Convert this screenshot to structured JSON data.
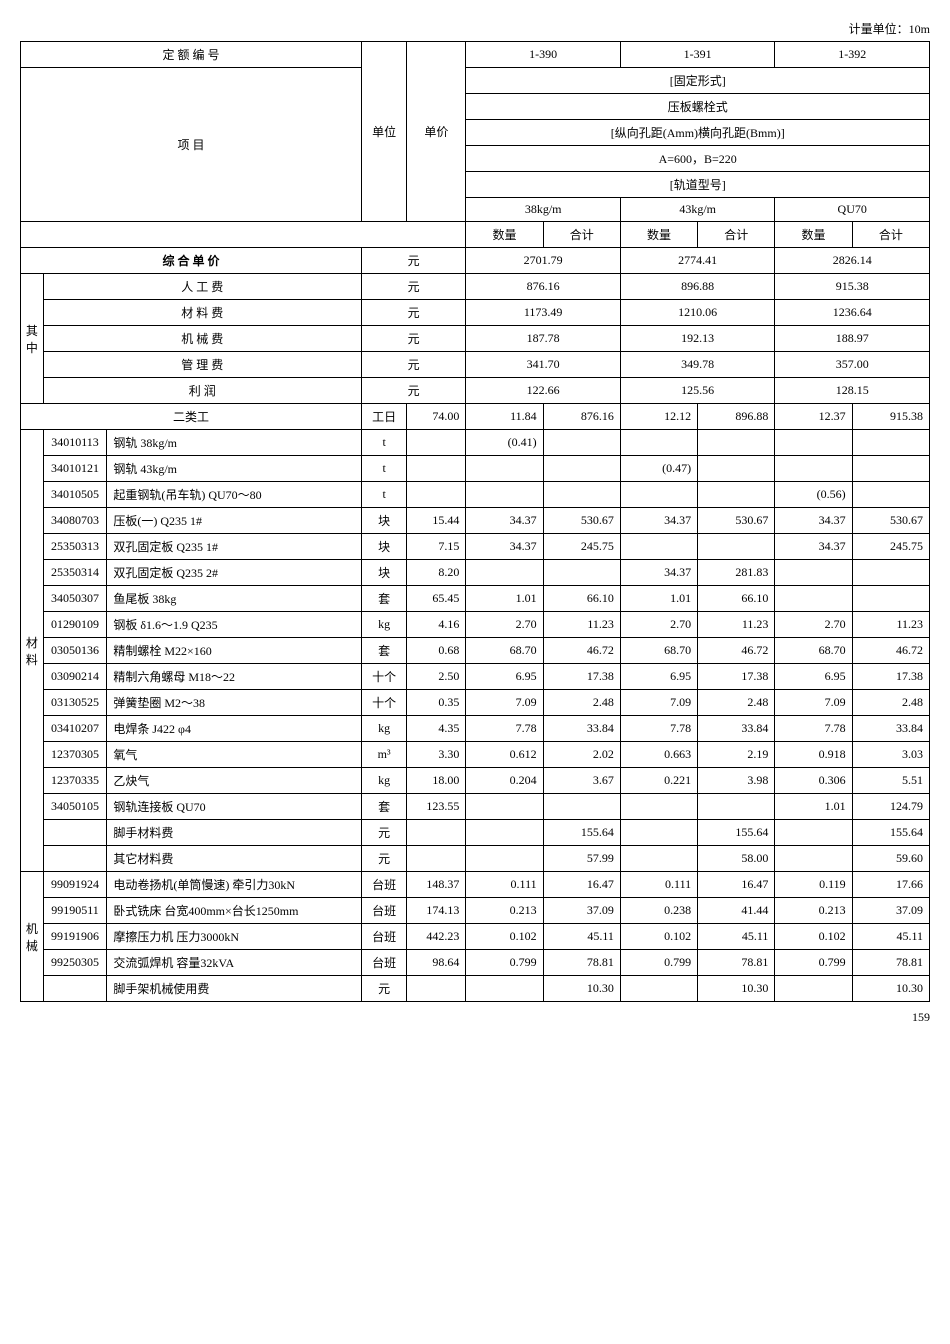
{
  "unit_label": "计量单位：10m",
  "page_number": "159",
  "header": {
    "quota_number": "定 额 编 号",
    "item": "项    目",
    "unit": "单位",
    "price": "单价",
    "fixed_form": "[固定形式]",
    "bolt_type": "压板螺栓式",
    "hole_spacing": "[纵向孔距(Amm)横向孔距(Bmm)]",
    "ab_spec": "A=600，B=220",
    "rail_model": "[轨道型号]",
    "cols": [
      "1-390",
      "1-391",
      "1-392"
    ],
    "spec_cols": [
      "38kg/m",
      "43kg/m",
      "QU70"
    ],
    "qty": "数量",
    "sum": "合计"
  },
  "composite": {
    "label": "综 合 单 价",
    "unit": "元",
    "vals": [
      "2701.79",
      "2774.41",
      "2826.14"
    ]
  },
  "cost_group": {
    "side": "其中",
    "rows": [
      {
        "label": "人 工 费",
        "unit": "元",
        "vals": [
          "876.16",
          "896.88",
          "915.38"
        ]
      },
      {
        "label": "材 料 费",
        "unit": "元",
        "vals": [
          "1173.49",
          "1210.06",
          "1236.64"
        ]
      },
      {
        "label": "机 械 费",
        "unit": "元",
        "vals": [
          "187.78",
          "192.13",
          "188.97"
        ]
      },
      {
        "label": "管 理 费",
        "unit": "元",
        "vals": [
          "341.70",
          "349.78",
          "357.00"
        ]
      },
      {
        "label": "利    润",
        "unit": "元",
        "vals": [
          "122.66",
          "125.56",
          "128.15"
        ]
      }
    ]
  },
  "labor": {
    "label": "二类工",
    "unit": "工日",
    "price": "74.00",
    "cells": [
      "11.84",
      "876.16",
      "12.12",
      "896.88",
      "12.37",
      "915.38"
    ]
  },
  "material": {
    "side": "材料",
    "rows": [
      {
        "code": "34010113",
        "name": "钢轨 38kg/m",
        "unit": "t",
        "price": "",
        "cells": [
          "(0.41)",
          "",
          "",
          "",
          "",
          ""
        ]
      },
      {
        "code": "34010121",
        "name": "钢轨 43kg/m",
        "unit": "t",
        "price": "",
        "cells": [
          "",
          "",
          "(0.47)",
          "",
          "",
          ""
        ]
      },
      {
        "code": "34010505",
        "name": "起重钢轨(吊车轨) QU70～80",
        "unit": "t",
        "price": "",
        "cells": [
          "",
          "",
          "",
          "",
          "(0.56)",
          ""
        ]
      },
      {
        "code": "34080703",
        "name": "压板(一) Q235 1#",
        "unit": "块",
        "price": "15.44",
        "cells": [
          "34.37",
          "530.67",
          "34.37",
          "530.67",
          "34.37",
          "530.67"
        ]
      },
      {
        "code": "25350313",
        "name": "双孔固定板 Q235 1#",
        "unit": "块",
        "price": "7.15",
        "cells": [
          "34.37",
          "245.75",
          "",
          "",
          "34.37",
          "245.75"
        ]
      },
      {
        "code": "25350314",
        "name": "双孔固定板 Q235 2#",
        "unit": "块",
        "price": "8.20",
        "cells": [
          "",
          "",
          "34.37",
          "281.83",
          "",
          ""
        ]
      },
      {
        "code": "34050307",
        "name": "鱼尾板 38kg",
        "unit": "套",
        "price": "65.45",
        "cells": [
          "1.01",
          "66.10",
          "1.01",
          "66.10",
          "",
          ""
        ]
      },
      {
        "code": "01290109",
        "name": "钢板 δ1.6～1.9 Q235",
        "unit": "kg",
        "price": "4.16",
        "cells": [
          "2.70",
          "11.23",
          "2.70",
          "11.23",
          "2.70",
          "11.23"
        ]
      },
      {
        "code": "03050136",
        "name": "精制螺栓 M22×160",
        "unit": "套",
        "price": "0.68",
        "cells": [
          "68.70",
          "46.72",
          "68.70",
          "46.72",
          "68.70",
          "46.72"
        ]
      },
      {
        "code": "03090214",
        "name": "精制六角螺母 M18～22",
        "unit": "十个",
        "price": "2.50",
        "cells": [
          "6.95",
          "17.38",
          "6.95",
          "17.38",
          "6.95",
          "17.38"
        ]
      },
      {
        "code": "03130525",
        "name": "弹簧垫圈 M2～38",
        "unit": "十个",
        "price": "0.35",
        "cells": [
          "7.09",
          "2.48",
          "7.09",
          "2.48",
          "7.09",
          "2.48"
        ]
      },
      {
        "code": "03410207",
        "name": "电焊条 J422 φ4",
        "unit": "kg",
        "price": "4.35",
        "cells": [
          "7.78",
          "33.84",
          "7.78",
          "33.84",
          "7.78",
          "33.84"
        ]
      },
      {
        "code": "12370305",
        "name": "氧气",
        "unit": "m³",
        "price": "3.30",
        "cells": [
          "0.612",
          "2.02",
          "0.663",
          "2.19",
          "0.918",
          "3.03"
        ]
      },
      {
        "code": "12370335",
        "name": "乙炔气",
        "unit": "kg",
        "price": "18.00",
        "cells": [
          "0.204",
          "3.67",
          "0.221",
          "3.98",
          "0.306",
          "5.51"
        ]
      },
      {
        "code": "34050105",
        "name": "钢轨连接板 QU70",
        "unit": "套",
        "price": "123.55",
        "cells": [
          "",
          "",
          "",
          "",
          "1.01",
          "124.79"
        ]
      },
      {
        "code": "",
        "name": "脚手材料费",
        "unit": "元",
        "price": "",
        "cells": [
          "",
          "155.64",
          "",
          "155.64",
          "",
          "155.64"
        ]
      },
      {
        "code": "",
        "name": "其它材料费",
        "unit": "元",
        "price": "",
        "cells": [
          "",
          "57.99",
          "",
          "58.00",
          "",
          "59.60"
        ]
      }
    ]
  },
  "machine": {
    "side": "机械",
    "rows": [
      {
        "code": "99091924",
        "name": "电动卷扬机(单筒慢速) 牵引力30kN",
        "unit": "台班",
        "price": "148.37",
        "cells": [
          "0.111",
          "16.47",
          "0.111",
          "16.47",
          "0.119",
          "17.66"
        ]
      },
      {
        "code": "99190511",
        "name": "卧式铣床 台宽400mm×台长1250mm",
        "unit": "台班",
        "price": "174.13",
        "cells": [
          "0.213",
          "37.09",
          "0.238",
          "41.44",
          "0.213",
          "37.09"
        ]
      },
      {
        "code": "99191906",
        "name": "摩擦压力机 压力3000kN",
        "unit": "台班",
        "price": "442.23",
        "cells": [
          "0.102",
          "45.11",
          "0.102",
          "45.11",
          "0.102",
          "45.11"
        ]
      },
      {
        "code": "99250305",
        "name": "交流弧焊机 容量32kVA",
        "unit": "台班",
        "price": "98.64",
        "cells": [
          "0.799",
          "78.81",
          "0.799",
          "78.81",
          "0.799",
          "78.81"
        ]
      },
      {
        "code": "",
        "name": "脚手架机械使用费",
        "unit": "元",
        "price": "",
        "cells": [
          "",
          "10.30",
          "",
          "10.30",
          "",
          "10.30"
        ]
      }
    ]
  }
}
